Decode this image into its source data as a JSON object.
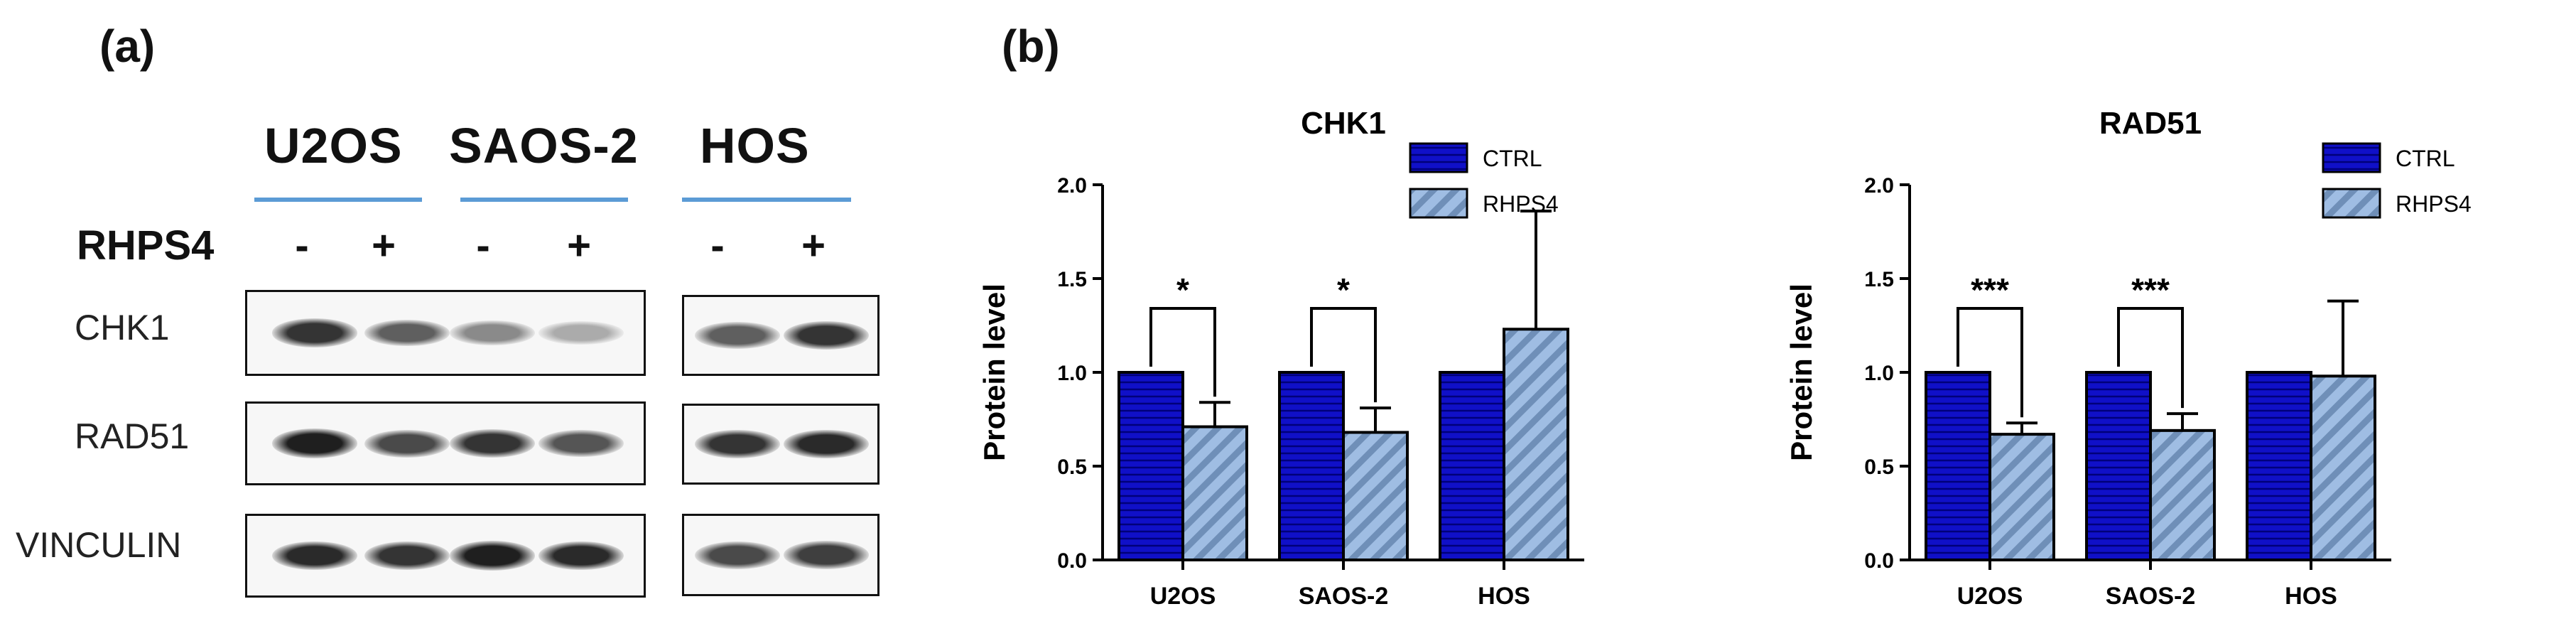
{
  "panel_a": {
    "label": "(a)",
    "treatment_label": "RHPS4",
    "cell_lines": [
      {
        "name": "U2OS",
        "signs": [
          "-",
          "+"
        ]
      },
      {
        "name": "SAOS-2",
        "signs": [
          "-",
          "+"
        ]
      },
      {
        "name": "HOS",
        "signs": [
          "-",
          "+"
        ]
      }
    ],
    "proteins": [
      "CHK1",
      "RAD51",
      "VINCULIN"
    ],
    "band_intensity": {
      "CHK1": [
        0.85,
        0.65,
        0.45,
        0.3,
        0.65,
        0.85
      ],
      "RAD51": [
        0.95,
        0.75,
        0.85,
        0.7,
        0.85,
        0.9
      ],
      "VINCULIN": [
        0.9,
        0.85,
        0.95,
        0.9,
        0.75,
        0.8
      ]
    }
  },
  "panel_b": {
    "label": "(b)"
  },
  "colors": {
    "ctrl": "#1010c8",
    "rhps4_base": "#9fbde3",
    "rhps4_stripe": "#6f8fb8",
    "blot_line": "#5b9bd5"
  },
  "chart_data": [
    {
      "type": "bar",
      "title": "CHK1",
      "xlabel": "",
      "ylabel": "Protein level",
      "ylim": [
        0,
        2.0
      ],
      "yticks": [
        "0.0",
        "0.5",
        "1.0",
        "1.5",
        "2.0"
      ],
      "categories": [
        "U2OS",
        "SAOS-2",
        "HOS"
      ],
      "legend": [
        "CTRL",
        "RHPS4"
      ],
      "legend_position": "top-right",
      "series": [
        {
          "name": "CTRL",
          "values": [
            1.0,
            1.0,
            1.0
          ],
          "errors": [
            0,
            0,
            0
          ]
        },
        {
          "name": "RHPS4",
          "values": [
            0.71,
            0.68,
            1.23
          ],
          "errors": [
            0.13,
            0.13,
            0.63
          ]
        }
      ],
      "significance": [
        "*",
        "*",
        ""
      ]
    },
    {
      "type": "bar",
      "title": "RAD51",
      "xlabel": "",
      "ylabel": "Protein level",
      "ylim": [
        0,
        2.0
      ],
      "yticks": [
        "0.0",
        "0.5",
        "1.0",
        "1.5",
        "2.0"
      ],
      "categories": [
        "U2OS",
        "SAOS-2",
        "HOS"
      ],
      "legend": [
        "CTRL",
        "RHPS4"
      ],
      "legend_position": "top-right",
      "series": [
        {
          "name": "CTRL",
          "values": [
            1.0,
            1.0,
            1.0
          ],
          "errors": [
            0,
            0,
            0
          ]
        },
        {
          "name": "RHPS4",
          "values": [
            0.67,
            0.69,
            0.98
          ],
          "errors": [
            0.06,
            0.09,
            0.4
          ]
        }
      ],
      "significance": [
        "***",
        "***",
        ""
      ]
    }
  ]
}
